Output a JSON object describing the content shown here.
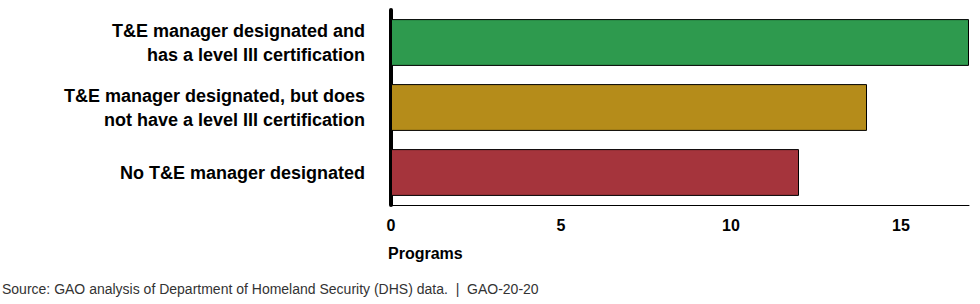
{
  "chart_data": {
    "type": "bar",
    "orientation": "horizontal",
    "categories": [
      "T&E manager designated and\nhas a level III certification",
      "T&E manager designated, but does\nnot have a level III certification",
      "No T&E manager designated"
    ],
    "values": [
      17,
      14,
      12
    ],
    "colors": [
      "#2e9a4e",
      "#b58c1a",
      "#a5343c"
    ],
    "x_label": "Programs",
    "xlim": [
      0,
      17
    ],
    "xticks": [
      0,
      5,
      10,
      15
    ],
    "grid": false,
    "source": "Source: GAO analysis of Department of Homeland Security (DHS) data.  |  GAO-20-20"
  }
}
